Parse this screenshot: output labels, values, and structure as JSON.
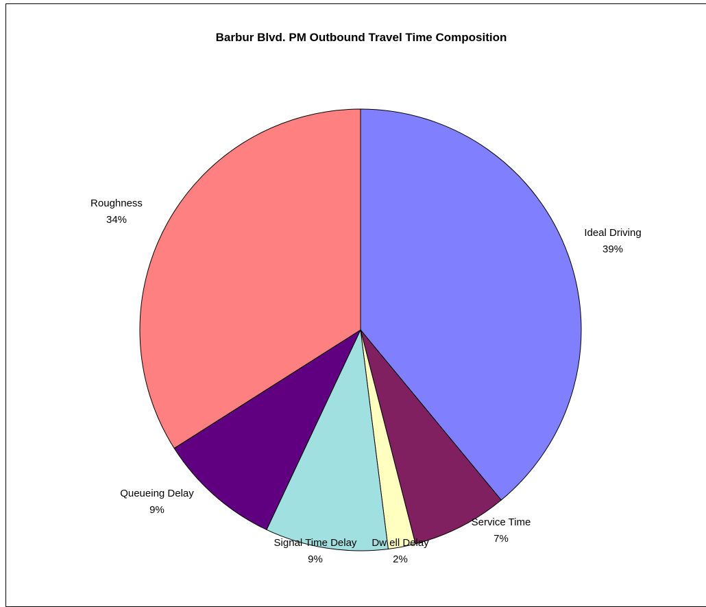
{
  "chart_data": {
    "type": "pie",
    "title": "Barbur Blvd. PM Outbound Travel Time Composition",
    "slices": [
      {
        "label": "Ideal Driving",
        "value": 39,
        "pct_label": "39%",
        "color": "#8080FF"
      },
      {
        "label": "Service Time",
        "value": 7,
        "pct_label": "7%",
        "color": "#802060"
      },
      {
        "label": "Dw ell Delay",
        "value": 2,
        "pct_label": "2%",
        "color": "#FFFFC0"
      },
      {
        "label": "Signal Time Delay",
        "value": 9,
        "pct_label": "9%",
        "color": "#A0E0E0"
      },
      {
        "label": "Queueing Delay",
        "value": 9,
        "pct_label": "9%",
        "color": "#600080"
      },
      {
        "label": "Roughness",
        "value": 34,
        "pct_label": "34%",
        "color": "#FF8080"
      }
    ],
    "start_angle_deg": 0,
    "direction": "clockwise",
    "data_labels": "category-and-percent",
    "legend": "none"
  }
}
